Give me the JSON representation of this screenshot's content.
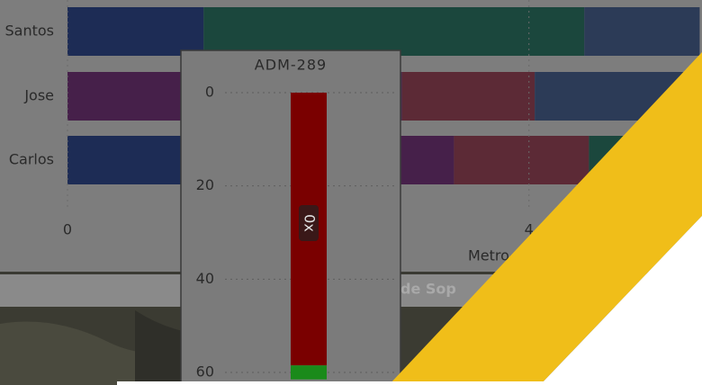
{
  "chart_data": [
    {
      "type": "hbar-stacked",
      "orientation": "horizontal",
      "stacked": true,
      "categories": [
        "Santos",
        "Jose",
        "Carlos"
      ],
      "series": [
        {
          "color": "#1d2c55",
          "values": [
            1.18,
            0,
            1.75
          ]
        },
        {
          "color": "#46204a",
          "values": [
            0,
            2.9,
            1.6
          ]
        },
        {
          "color": "#5c2a36",
          "values": [
            0,
            1.15,
            1.17
          ]
        },
        {
          "color": "#1b473d",
          "values": [
            3.3,
            0,
            1.0
          ]
        },
        {
          "color": "#2c3b57",
          "values": [
            1.0,
            1.5,
            0
          ]
        }
      ],
      "xlim": [
        0,
        5.5
      ],
      "xticks": [
        0,
        4
      ],
      "xlabel": "Metro"
    },
    {
      "type": "bar-stacked",
      "title": "ADM-289",
      "stacked": true,
      "y_inverted": true,
      "series": [
        {
          "color": "#7a0000",
          "values": [
            58.5
          ]
        },
        {
          "color": "#1a8a1a",
          "values": [
            3
          ]
        }
      ],
      "ylim": [
        0,
        60
      ],
      "yticks": [
        0,
        20,
        40,
        60
      ],
      "grid": true,
      "annotation": "0x"
    }
  ],
  "banner_text": "de Sop"
}
